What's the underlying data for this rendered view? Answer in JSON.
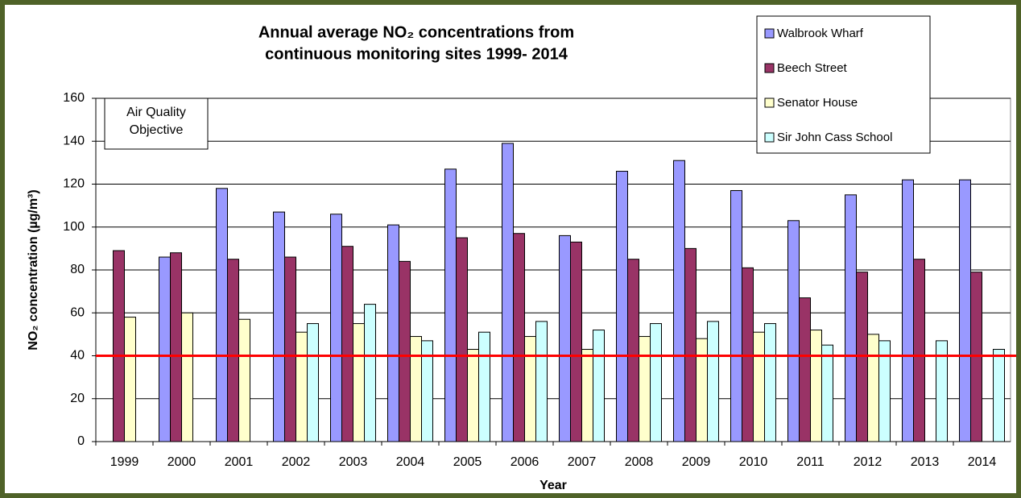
{
  "chart_data": {
    "type": "bar",
    "title_lines": [
      "Annual average NO₂ concentrations from",
      "continuous monitoring sites 1999- 2014"
    ],
    "x_label": "Year",
    "y_label": "NO₂ concentration (µg/m³)",
    "categories": [
      "1999",
      "2000",
      "2001",
      "2002",
      "2003",
      "2004",
      "2005",
      "2006",
      "2007",
      "2008",
      "2009",
      "2010",
      "2011",
      "2012",
      "2013",
      "2014"
    ],
    "series": [
      {
        "name": "Walbrook Wharf",
        "color": "#9999ff",
        "values": [
          null,
          86,
          118,
          107,
          106,
          101,
          127,
          139,
          96,
          126,
          131,
          117,
          103,
          115,
          122,
          122
        ]
      },
      {
        "name": "Beech Street",
        "color": "#993366",
        "values": [
          89,
          88,
          85,
          86,
          91,
          84,
          95,
          97,
          93,
          85,
          90,
          81,
          67,
          79,
          85,
          79
        ]
      },
      {
        "name": "Senator House",
        "color": "#ffffcc",
        "values": [
          58,
          60,
          57,
          51,
          55,
          49,
          43,
          49,
          43,
          49,
          48,
          51,
          52,
          50,
          null,
          null
        ]
      },
      {
        "name": "Sir John Cass School",
        "color": "#ccffff",
        "values": [
          null,
          null,
          null,
          55,
          64,
          47,
          51,
          56,
          52,
          55,
          56,
          55,
          45,
          47,
          47,
          43
        ]
      }
    ],
    "ylim": [
      0,
      160
    ],
    "yticks": [
      0,
      20,
      40,
      60,
      80,
      100,
      120,
      140,
      160
    ],
    "grid": true,
    "legend": "top-right",
    "objective": {
      "lines": [
        "Air Quality",
        "Objective"
      ],
      "value": 40,
      "color": "#ff0000"
    }
  }
}
